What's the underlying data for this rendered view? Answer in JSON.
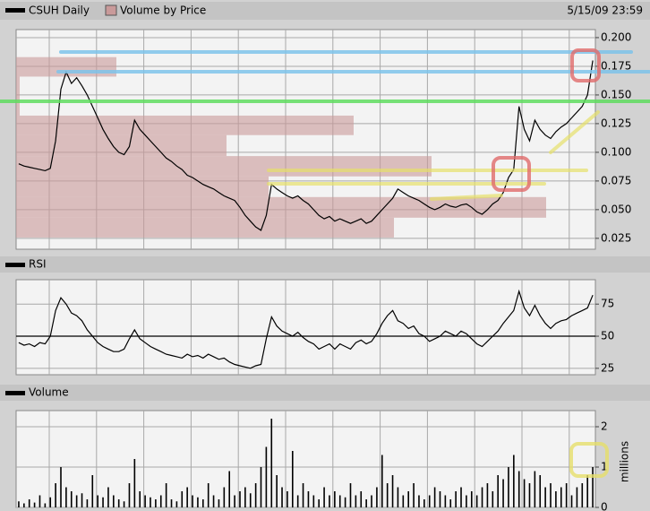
{
  "chart_data": [
    {
      "type": "line",
      "subtitle": "5/15/09 23:59",
      "series": [
        {
          "name": "CSUH Daily",
          "color": "#000000",
          "values": [
            0.09,
            0.088,
            0.087,
            0.086,
            0.085,
            0.084,
            0.086,
            0.11,
            0.155,
            0.17,
            0.16,
            0.165,
            0.158,
            0.15,
            0.14,
            0.13,
            0.12,
            0.112,
            0.105,
            0.1,
            0.098,
            0.105,
            0.128,
            0.12,
            0.115,
            0.11,
            0.105,
            0.1,
            0.095,
            0.092,
            0.088,
            0.085,
            0.08,
            0.078,
            0.075,
            0.072,
            0.07,
            0.068,
            0.065,
            0.062,
            0.06,
            0.058,
            0.052,
            0.045,
            0.04,
            0.035,
            0.032,
            0.045,
            0.072,
            0.068,
            0.065,
            0.062,
            0.06,
            0.062,
            0.058,
            0.055,
            0.05,
            0.045,
            0.042,
            0.044,
            0.04,
            0.042,
            0.04,
            0.038,
            0.04,
            0.042,
            0.038,
            0.04,
            0.045,
            0.05,
            0.055,
            0.06,
            0.068,
            0.065,
            0.062,
            0.06,
            0.058,
            0.055,
            0.052,
            0.05,
            0.052,
            0.055,
            0.053,
            0.052,
            0.054,
            0.055,
            0.052,
            0.048,
            0.046,
            0.05,
            0.055,
            0.058,
            0.065,
            0.078,
            0.085,
            0.14,
            0.12,
            0.11,
            0.128,
            0.12,
            0.115,
            0.112,
            0.118,
            0.122,
            0.125,
            0.13,
            0.135,
            0.14,
            0.15,
            0.18
          ]
        }
      ],
      "volume_by_price": {
        "name": "Volume by Price",
        "color": "#c99a9a",
        "bins": [
          0.0257,
          0.043,
          0.061,
          0.079,
          0.0967,
          0.115,
          0.132,
          0.166,
          0.183
        ],
        "values": [
          422,
          592,
          282,
          464,
          235,
          377,
          4,
          112
        ],
        "xlim": [
          0,
          647
        ]
      },
      "ylim": [
        0.0155,
        0.207
      ],
      "yticks": [
        {
          "value": 0.025,
          "label": "0.025"
        },
        {
          "value": 0.05,
          "label": "0.050"
        },
        {
          "value": 0.075,
          "label": "0.075"
        },
        {
          "value": 0.1,
          "label": "0.100"
        },
        {
          "value": 0.125,
          "label": "0.125"
        },
        {
          "value": 0.15,
          "label": "0.150"
        },
        {
          "value": 0.175,
          "label": "0.175"
        },
        {
          "value": 0.2,
          "label": "0.200"
        }
      ]
    },
    {
      "type": "line",
      "series": [
        {
          "name": "RSI",
          "color": "#000000",
          "values": [
            45,
            43,
            44,
            42,
            45,
            44,
            50,
            70,
            80,
            75,
            68,
            66,
            62,
            55,
            50,
            45,
            42,
            40,
            38,
            38,
            40,
            48,
            55,
            48,
            45,
            42,
            40,
            38,
            36,
            35,
            34,
            33,
            36,
            34,
            35,
            33,
            36,
            34,
            32,
            33,
            30,
            28,
            27,
            26,
            25,
            27,
            28,
            48,
            65,
            58,
            54,
            52,
            50,
            53,
            49,
            46,
            44,
            40,
            42,
            44,
            40,
            44,
            42,
            40,
            45,
            47,
            44,
            46,
            52,
            60,
            66,
            70,
            62,
            60,
            56,
            58,
            52,
            50,
            46,
            48,
            50,
            54,
            52,
            50,
            54,
            52,
            48,
            44,
            42,
            46,
            50,
            54,
            60,
            65,
            70,
            85,
            72,
            66,
            74,
            66,
            60,
            56,
            60,
            62,
            63,
            66,
            68,
            70,
            72,
            82
          ]
        }
      ],
      "hline": 50,
      "ylim": [
        20,
        94
      ],
      "yticks": [
        25,
        50,
        75
      ]
    },
    {
      "type": "bar",
      "ylabel": "millions",
      "series": [
        {
          "name": "Volume",
          "color": "#000000",
          "values": [
            0.15,
            0.1,
            0.2,
            0.12,
            0.3,
            0.1,
            0.25,
            0.6,
            1.0,
            0.5,
            0.4,
            0.3,
            0.35,
            0.2,
            0.8,
            0.3,
            0.25,
            0.5,
            0.3,
            0.2,
            0.15,
            0.6,
            1.2,
            0.4,
            0.3,
            0.25,
            0.2,
            0.3,
            0.6,
            0.2,
            0.15,
            0.4,
            0.5,
            0.3,
            0.25,
            0.2,
            0.6,
            0.3,
            0.2,
            0.5,
            0.9,
            0.3,
            0.4,
            0.5,
            0.35,
            0.6,
            1.0,
            1.5,
            2.2,
            0.8,
            0.5,
            0.4,
            1.4,
            0.3,
            0.6,
            0.4,
            0.3,
            0.2,
            0.5,
            0.3,
            0.4,
            0.3,
            0.25,
            0.6,
            0.3,
            0.4,
            0.2,
            0.3,
            0.5,
            1.3,
            0.6,
            0.8,
            0.5,
            0.3,
            0.4,
            0.6,
            0.3,
            0.2,
            0.3,
            0.5,
            0.4,
            0.3,
            0.2,
            0.4,
            0.5,
            0.3,
            0.4,
            0.3,
            0.5,
            0.6,
            0.4,
            0.8,
            0.7,
            1.0,
            1.3,
            0.9,
            0.7,
            0.6,
            0.9,
            0.8,
            0.5,
            0.6,
            0.4,
            0.5,
            0.6,
            0.3,
            0.5,
            0.6,
            0.8,
            1.0
          ]
        }
      ],
      "ylim": [
        0,
        2.4
      ],
      "yticks": [
        0,
        1,
        2
      ]
    }
  ]
}
